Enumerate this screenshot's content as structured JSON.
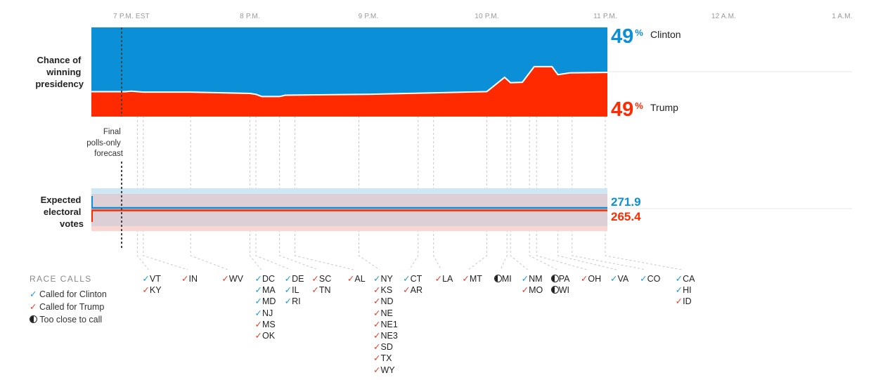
{
  "colors": {
    "clinton": "#0b8fd6",
    "trump": "#ff2a00",
    "band_blue": "#cfe6f3",
    "band_red": "#f9d6d2",
    "band_overlap": "#dccfd5"
  },
  "time_axis": [
    "7 P.M. EST",
    "8 P.M.",
    "9 P.M.",
    "10 P.M.",
    "11 P.M.",
    "12 A.M.",
    "1 A.M."
  ],
  "labels": {
    "win_title": [
      "Chance of",
      "winning",
      "presidency"
    ],
    "ev_title": [
      "Expected",
      "electoral",
      "votes"
    ],
    "final_note": [
      "Final",
      "polls-only",
      "forecast"
    ]
  },
  "chart_data": {
    "type": "area",
    "x_unit": "hours after 7 P.M. EST",
    "x_range": [
      -0.1,
      6.2
    ],
    "win_probability": {
      "clinton_pct_now": "49",
      "trump_pct_now": "49",
      "clinton_name": "Clinton",
      "trump_name": "Trump",
      "trump_share_points": [
        {
          "x": -0.05,
          "y": 0.28
        },
        {
          "x": 0.0,
          "y": 0.285
        },
        {
          "x": 0.1,
          "y": 0.275
        },
        {
          "x": 0.5,
          "y": 0.275
        },
        {
          "x": 1.0,
          "y": 0.26
        },
        {
          "x": 1.05,
          "y": 0.25
        },
        {
          "x": 1.1,
          "y": 0.225
        },
        {
          "x": 1.25,
          "y": 0.225
        },
        {
          "x": 1.3,
          "y": 0.24
        },
        {
          "x": 2.0,
          "y": 0.25
        },
        {
          "x": 3.0,
          "y": 0.28
        },
        {
          "x": 3.15,
          "y": 0.44
        },
        {
          "x": 3.2,
          "y": 0.38
        },
        {
          "x": 3.3,
          "y": 0.385
        },
        {
          "x": 3.4,
          "y": 0.56
        },
        {
          "x": 3.55,
          "y": 0.56
        },
        {
          "x": 3.6,
          "y": 0.47
        },
        {
          "x": 3.7,
          "y": 0.49
        },
        {
          "x": 4.0,
          "y": 0.495
        }
      ]
    },
    "electoral_votes": {
      "clinton": "271.9",
      "trump": "265.4"
    },
    "race_call_times": [
      0.05,
      0.1,
      0.5,
      1.0,
      1.05,
      1.25,
      1.38,
      1.92,
      2.42,
      2.55,
      3.0,
      3.17,
      3.2,
      3.36,
      3.42,
      3.6,
      3.72,
      4.0
    ]
  },
  "legend": {
    "title": "RACE CALLS",
    "items": [
      {
        "mark": "✓",
        "cls": "chk-blue",
        "label": "Called for Clinton"
      },
      {
        "mark": "✓",
        "cls": "chk-red",
        "label": "Called for Trump"
      },
      {
        "mark": "half",
        "cls": "",
        "label": "Too close to call"
      }
    ]
  },
  "race_calls": [
    {
      "t": 0.05,
      "items": [
        [
          "VT",
          "c"
        ],
        [
          "KY",
          "t"
        ]
      ]
    },
    {
      "t": 0.38,
      "items": [
        [
          "IN",
          "t"
        ]
      ]
    },
    {
      "t": 0.72,
      "items": [
        [
          "WV",
          "t"
        ]
      ]
    },
    {
      "t": 1.0,
      "items": [
        [
          "DC",
          "c"
        ],
        [
          "MA",
          "c"
        ],
        [
          "MD",
          "c"
        ],
        [
          "NJ",
          "c"
        ],
        [
          "MS",
          "t"
        ],
        [
          "OK",
          "t"
        ]
      ]
    },
    {
      "t": 1.25,
      "items": [
        [
          "DE",
          "c"
        ],
        [
          "IL",
          "c"
        ],
        [
          "RI",
          "c"
        ]
      ]
    },
    {
      "t": 1.48,
      "items": [
        [
          "SC",
          "t"
        ],
        [
          "TN",
          "t"
        ]
      ]
    },
    {
      "t": 1.78,
      "items": [
        [
          "AL",
          "t"
        ]
      ]
    },
    {
      "t": 2.0,
      "items": [
        [
          "NY",
          "c"
        ],
        [
          "KS",
          "t"
        ],
        [
          "ND",
          "t"
        ],
        [
          "NE",
          "t"
        ],
        [
          "NE1",
          "t"
        ],
        [
          "NE3",
          "t"
        ],
        [
          "SD",
          "t"
        ],
        [
          "TX",
          "t"
        ],
        [
          "WY",
          "t"
        ]
      ]
    },
    {
      "t": 2.25,
      "items": [
        [
          "CT",
          "c"
        ],
        [
          "AR",
          "t"
        ]
      ]
    },
    {
      "t": 2.52,
      "items": [
        [
          "LA",
          "t"
        ]
      ]
    },
    {
      "t": 2.75,
      "items": [
        [
          "MT",
          "t"
        ]
      ]
    },
    {
      "t": 3.02,
      "items": [
        [
          "MI",
          "h"
        ]
      ]
    },
    {
      "t": 3.25,
      "items": [
        [
          "NM",
          "c"
        ],
        [
          "MO",
          "t"
        ]
      ]
    },
    {
      "t": 3.5,
      "items": [
        [
          "PA",
          "h"
        ],
        [
          "WI",
          "h"
        ]
      ]
    },
    {
      "t": 3.75,
      "items": [
        [
          "OH",
          "t"
        ]
      ]
    },
    {
      "t": 4.0,
      "items": [
        [
          "VA",
          "c"
        ]
      ]
    },
    {
      "t": 4.25,
      "items": [
        [
          "CO",
          "c"
        ]
      ]
    },
    {
      "t": 4.55,
      "items": [
        [
          "CA",
          "c"
        ],
        [
          "HI",
          "c"
        ],
        [
          "ID",
          "t"
        ]
      ]
    }
  ]
}
